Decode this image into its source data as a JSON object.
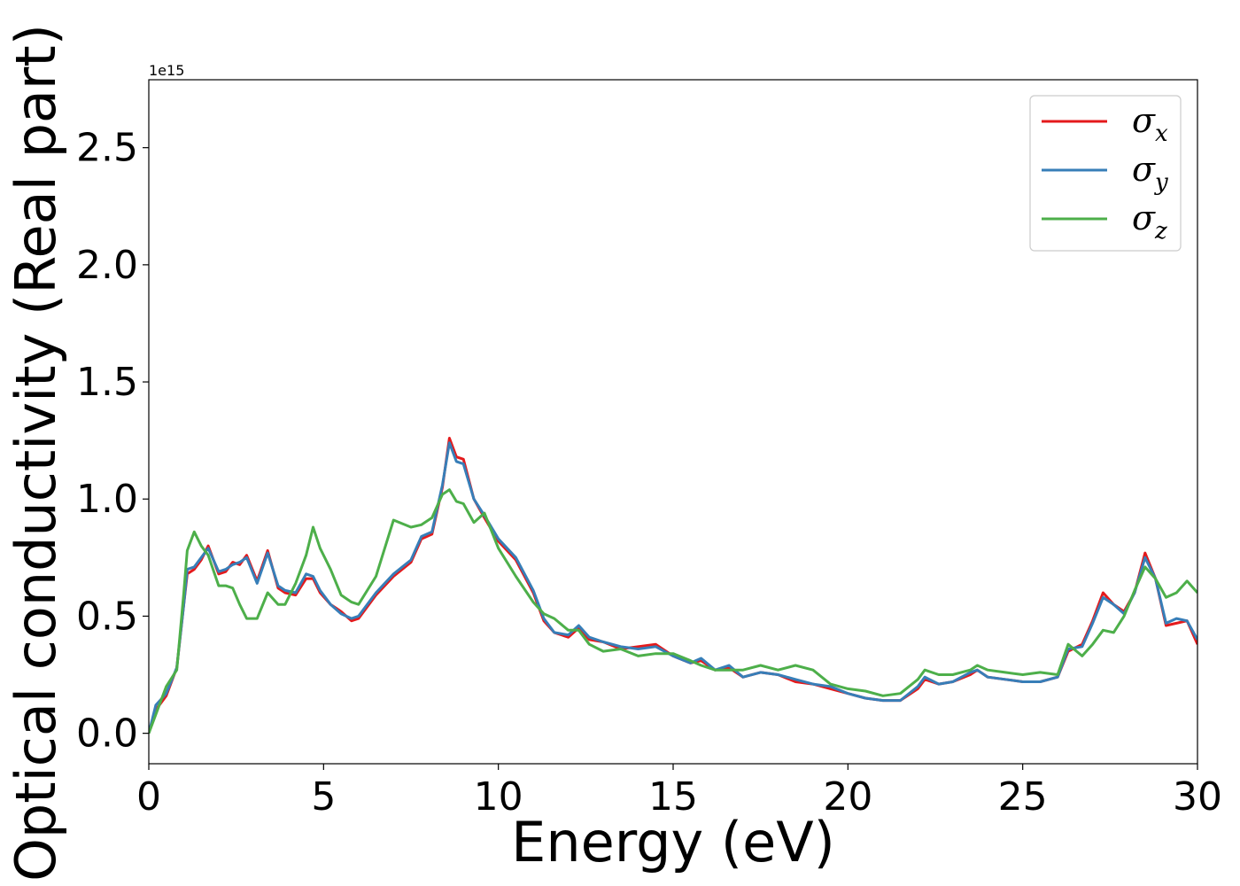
{
  "chart_data": {
    "type": "line",
    "title": "",
    "xlabel": "Energy (eV)",
    "ylabel": "Optical conductivity (Real part)",
    "y_offset_label": "1e15",
    "xlim": [
      0,
      30
    ],
    "ylim": [
      -0.13,
      2.79
    ],
    "x_ticks": [
      0,
      5,
      10,
      15,
      20,
      25,
      30
    ],
    "x_tick_labels": [
      "0",
      "5",
      "10",
      "15",
      "20",
      "25",
      "30"
    ],
    "y_ticks": [
      0.0,
      0.5,
      1.0,
      1.5,
      2.0,
      2.5
    ],
    "y_tick_labels": [
      "0.0",
      "0.5",
      "1.0",
      "1.5",
      "2.0",
      "2.5"
    ],
    "grid": false,
    "legend_position": "top-right",
    "series": [
      {
        "name": "σ_x",
        "legend_main": "σ",
        "legend_sub": "x",
        "color": "#e41a1c",
        "points": [
          [
            0,
            0.0
          ],
          [
            0.2,
            0.1
          ],
          [
            0.5,
            0.16
          ],
          [
            0.8,
            0.28
          ],
          [
            1.0,
            0.55
          ],
          [
            1.1,
            0.68
          ],
          [
            1.3,
            0.7
          ],
          [
            1.5,
            0.74
          ],
          [
            1.7,
            0.8
          ],
          [
            2.0,
            0.68
          ],
          [
            2.2,
            0.69
          ],
          [
            2.4,
            0.73
          ],
          [
            2.6,
            0.72
          ],
          [
            2.8,
            0.76
          ],
          [
            3.1,
            0.65
          ],
          [
            3.4,
            0.78
          ],
          [
            3.7,
            0.62
          ],
          [
            3.9,
            0.6
          ],
          [
            4.2,
            0.59
          ],
          [
            4.5,
            0.66
          ],
          [
            4.7,
            0.66
          ],
          [
            4.9,
            0.6
          ],
          [
            5.2,
            0.55
          ],
          [
            5.5,
            0.52
          ],
          [
            5.8,
            0.48
          ],
          [
            6.0,
            0.49
          ],
          [
            6.5,
            0.59
          ],
          [
            7.0,
            0.67
          ],
          [
            7.5,
            0.73
          ],
          [
            7.8,
            0.83
          ],
          [
            8.1,
            0.85
          ],
          [
            8.4,
            1.05
          ],
          [
            8.6,
            1.26
          ],
          [
            8.8,
            1.18
          ],
          [
            9.0,
            1.17
          ],
          [
            9.3,
            1.0
          ],
          [
            9.6,
            0.92
          ],
          [
            10.0,
            0.82
          ],
          [
            10.5,
            0.74
          ],
          [
            11.0,
            0.6
          ],
          [
            11.3,
            0.48
          ],
          [
            11.6,
            0.43
          ],
          [
            12.0,
            0.41
          ],
          [
            12.3,
            0.45
          ],
          [
            12.6,
            0.4
          ],
          [
            13.0,
            0.39
          ],
          [
            13.5,
            0.36
          ],
          [
            14.0,
            0.37
          ],
          [
            14.5,
            0.38
          ],
          [
            15.0,
            0.33
          ],
          [
            15.5,
            0.3
          ],
          [
            15.8,
            0.31
          ],
          [
            16.2,
            0.27
          ],
          [
            16.6,
            0.28
          ],
          [
            17.0,
            0.24
          ],
          [
            17.5,
            0.26
          ],
          [
            18.0,
            0.25
          ],
          [
            18.5,
            0.22
          ],
          [
            19.0,
            0.21
          ],
          [
            19.5,
            0.19
          ],
          [
            20.0,
            0.17
          ],
          [
            20.5,
            0.15
          ],
          [
            21.0,
            0.14
          ],
          [
            21.5,
            0.14
          ],
          [
            22.0,
            0.19
          ],
          [
            22.2,
            0.23
          ],
          [
            22.6,
            0.21
          ],
          [
            23.0,
            0.22
          ],
          [
            23.5,
            0.25
          ],
          [
            23.7,
            0.27
          ],
          [
            24.0,
            0.24
          ],
          [
            24.5,
            0.23
          ],
          [
            25.0,
            0.22
          ],
          [
            25.5,
            0.22
          ],
          [
            26.0,
            0.24
          ],
          [
            26.3,
            0.35
          ],
          [
            26.7,
            0.38
          ],
          [
            27.0,
            0.48
          ],
          [
            27.3,
            0.6
          ],
          [
            27.6,
            0.55
          ],
          [
            27.9,
            0.52
          ],
          [
            28.2,
            0.6
          ],
          [
            28.5,
            0.77
          ],
          [
            28.8,
            0.66
          ],
          [
            29.1,
            0.46
          ],
          [
            29.4,
            0.47
          ],
          [
            29.7,
            0.48
          ],
          [
            30.0,
            0.38
          ]
        ]
      },
      {
        "name": "σ_y",
        "legend_main": "σ",
        "legend_sub": "y",
        "color": "#377eb8",
        "points": [
          [
            0,
            0.0
          ],
          [
            0.2,
            0.12
          ],
          [
            0.5,
            0.17
          ],
          [
            0.8,
            0.28
          ],
          [
            1.0,
            0.55
          ],
          [
            1.1,
            0.7
          ],
          [
            1.3,
            0.71
          ],
          [
            1.5,
            0.75
          ],
          [
            1.7,
            0.79
          ],
          [
            2.0,
            0.69
          ],
          [
            2.2,
            0.7
          ],
          [
            2.4,
            0.72
          ],
          [
            2.6,
            0.73
          ],
          [
            2.8,
            0.75
          ],
          [
            3.1,
            0.64
          ],
          [
            3.4,
            0.77
          ],
          [
            3.7,
            0.63
          ],
          [
            3.9,
            0.61
          ],
          [
            4.2,
            0.6
          ],
          [
            4.5,
            0.68
          ],
          [
            4.7,
            0.67
          ],
          [
            4.9,
            0.61
          ],
          [
            5.2,
            0.55
          ],
          [
            5.5,
            0.51
          ],
          [
            5.8,
            0.49
          ],
          [
            6.0,
            0.5
          ],
          [
            6.5,
            0.6
          ],
          [
            7.0,
            0.68
          ],
          [
            7.5,
            0.74
          ],
          [
            7.8,
            0.84
          ],
          [
            8.1,
            0.86
          ],
          [
            8.4,
            1.06
          ],
          [
            8.6,
            1.24
          ],
          [
            8.8,
            1.16
          ],
          [
            9.0,
            1.15
          ],
          [
            9.3,
            1.0
          ],
          [
            9.6,
            0.93
          ],
          [
            10.0,
            0.83
          ],
          [
            10.5,
            0.75
          ],
          [
            11.0,
            0.61
          ],
          [
            11.3,
            0.49
          ],
          [
            11.6,
            0.43
          ],
          [
            12.0,
            0.42
          ],
          [
            12.3,
            0.46
          ],
          [
            12.6,
            0.41
          ],
          [
            13.0,
            0.39
          ],
          [
            13.5,
            0.37
          ],
          [
            14.0,
            0.36
          ],
          [
            14.5,
            0.37
          ],
          [
            15.0,
            0.33
          ],
          [
            15.5,
            0.3
          ],
          [
            15.8,
            0.32
          ],
          [
            16.2,
            0.27
          ],
          [
            16.6,
            0.29
          ],
          [
            17.0,
            0.24
          ],
          [
            17.5,
            0.26
          ],
          [
            18.0,
            0.25
          ],
          [
            18.5,
            0.23
          ],
          [
            19.0,
            0.21
          ],
          [
            19.5,
            0.2
          ],
          [
            20.0,
            0.17
          ],
          [
            20.5,
            0.15
          ],
          [
            21.0,
            0.14
          ],
          [
            21.5,
            0.14
          ],
          [
            22.0,
            0.2
          ],
          [
            22.2,
            0.24
          ],
          [
            22.6,
            0.21
          ],
          [
            23.0,
            0.22
          ],
          [
            23.5,
            0.26
          ],
          [
            23.7,
            0.27
          ],
          [
            24.0,
            0.24
          ],
          [
            24.5,
            0.23
          ],
          [
            25.0,
            0.22
          ],
          [
            25.5,
            0.22
          ],
          [
            26.0,
            0.24
          ],
          [
            26.3,
            0.36
          ],
          [
            26.7,
            0.37
          ],
          [
            27.0,
            0.47
          ],
          [
            27.3,
            0.58
          ],
          [
            27.6,
            0.55
          ],
          [
            27.9,
            0.51
          ],
          [
            28.2,
            0.6
          ],
          [
            28.5,
            0.75
          ],
          [
            28.8,
            0.66
          ],
          [
            29.1,
            0.47
          ],
          [
            29.4,
            0.49
          ],
          [
            29.7,
            0.48
          ],
          [
            30.0,
            0.4
          ]
        ]
      },
      {
        "name": "σ_z",
        "legend_main": "σ",
        "legend_sub": "z",
        "color": "#4daf4a",
        "points": [
          [
            0,
            0.0
          ],
          [
            0.2,
            0.08
          ],
          [
            0.5,
            0.2
          ],
          [
            0.8,
            0.27
          ],
          [
            1.0,
            0.6
          ],
          [
            1.1,
            0.78
          ],
          [
            1.3,
            0.86
          ],
          [
            1.5,
            0.8
          ],
          [
            1.7,
            0.76
          ],
          [
            2.0,
            0.63
          ],
          [
            2.2,
            0.63
          ],
          [
            2.4,
            0.62
          ],
          [
            2.6,
            0.55
          ],
          [
            2.8,
            0.49
          ],
          [
            3.1,
            0.49
          ],
          [
            3.4,
            0.6
          ],
          [
            3.7,
            0.55
          ],
          [
            3.9,
            0.55
          ],
          [
            4.2,
            0.64
          ],
          [
            4.5,
            0.76
          ],
          [
            4.7,
            0.88
          ],
          [
            4.9,
            0.79
          ],
          [
            5.2,
            0.7
          ],
          [
            5.5,
            0.59
          ],
          [
            5.8,
            0.56
          ],
          [
            6.0,
            0.55
          ],
          [
            6.5,
            0.67
          ],
          [
            7.0,
            0.91
          ],
          [
            7.5,
            0.88
          ],
          [
            7.8,
            0.89
          ],
          [
            8.1,
            0.92
          ],
          [
            8.4,
            1.02
          ],
          [
            8.6,
            1.04
          ],
          [
            8.8,
            0.99
          ],
          [
            9.0,
            0.98
          ],
          [
            9.3,
            0.9
          ],
          [
            9.6,
            0.94
          ],
          [
            10.0,
            0.79
          ],
          [
            10.5,
            0.67
          ],
          [
            11.0,
            0.56
          ],
          [
            11.3,
            0.51
          ],
          [
            11.6,
            0.49
          ],
          [
            12.0,
            0.44
          ],
          [
            12.3,
            0.44
          ],
          [
            12.6,
            0.38
          ],
          [
            13.0,
            0.35
          ],
          [
            13.5,
            0.36
          ],
          [
            14.0,
            0.33
          ],
          [
            14.5,
            0.34
          ],
          [
            15.0,
            0.34
          ],
          [
            15.5,
            0.31
          ],
          [
            15.8,
            0.29
          ],
          [
            16.2,
            0.27
          ],
          [
            16.6,
            0.27
          ],
          [
            17.0,
            0.27
          ],
          [
            17.5,
            0.29
          ],
          [
            18.0,
            0.27
          ],
          [
            18.5,
            0.29
          ],
          [
            19.0,
            0.27
          ],
          [
            19.5,
            0.21
          ],
          [
            20.0,
            0.19
          ],
          [
            20.5,
            0.18
          ],
          [
            21.0,
            0.16
          ],
          [
            21.5,
            0.17
          ],
          [
            22.0,
            0.23
          ],
          [
            22.2,
            0.27
          ],
          [
            22.6,
            0.25
          ],
          [
            23.0,
            0.25
          ],
          [
            23.5,
            0.27
          ],
          [
            23.7,
            0.29
          ],
          [
            24.0,
            0.27
          ],
          [
            24.5,
            0.26
          ],
          [
            25.0,
            0.25
          ],
          [
            25.5,
            0.26
          ],
          [
            26.0,
            0.25
          ],
          [
            26.3,
            0.38
          ],
          [
            26.7,
            0.33
          ],
          [
            27.0,
            0.38
          ],
          [
            27.3,
            0.44
          ],
          [
            27.6,
            0.43
          ],
          [
            27.9,
            0.5
          ],
          [
            28.2,
            0.61
          ],
          [
            28.5,
            0.71
          ],
          [
            28.8,
            0.66
          ],
          [
            29.1,
            0.58
          ],
          [
            29.4,
            0.6
          ],
          [
            29.7,
            0.65
          ],
          [
            30.0,
            0.6
          ]
        ]
      }
    ]
  }
}
